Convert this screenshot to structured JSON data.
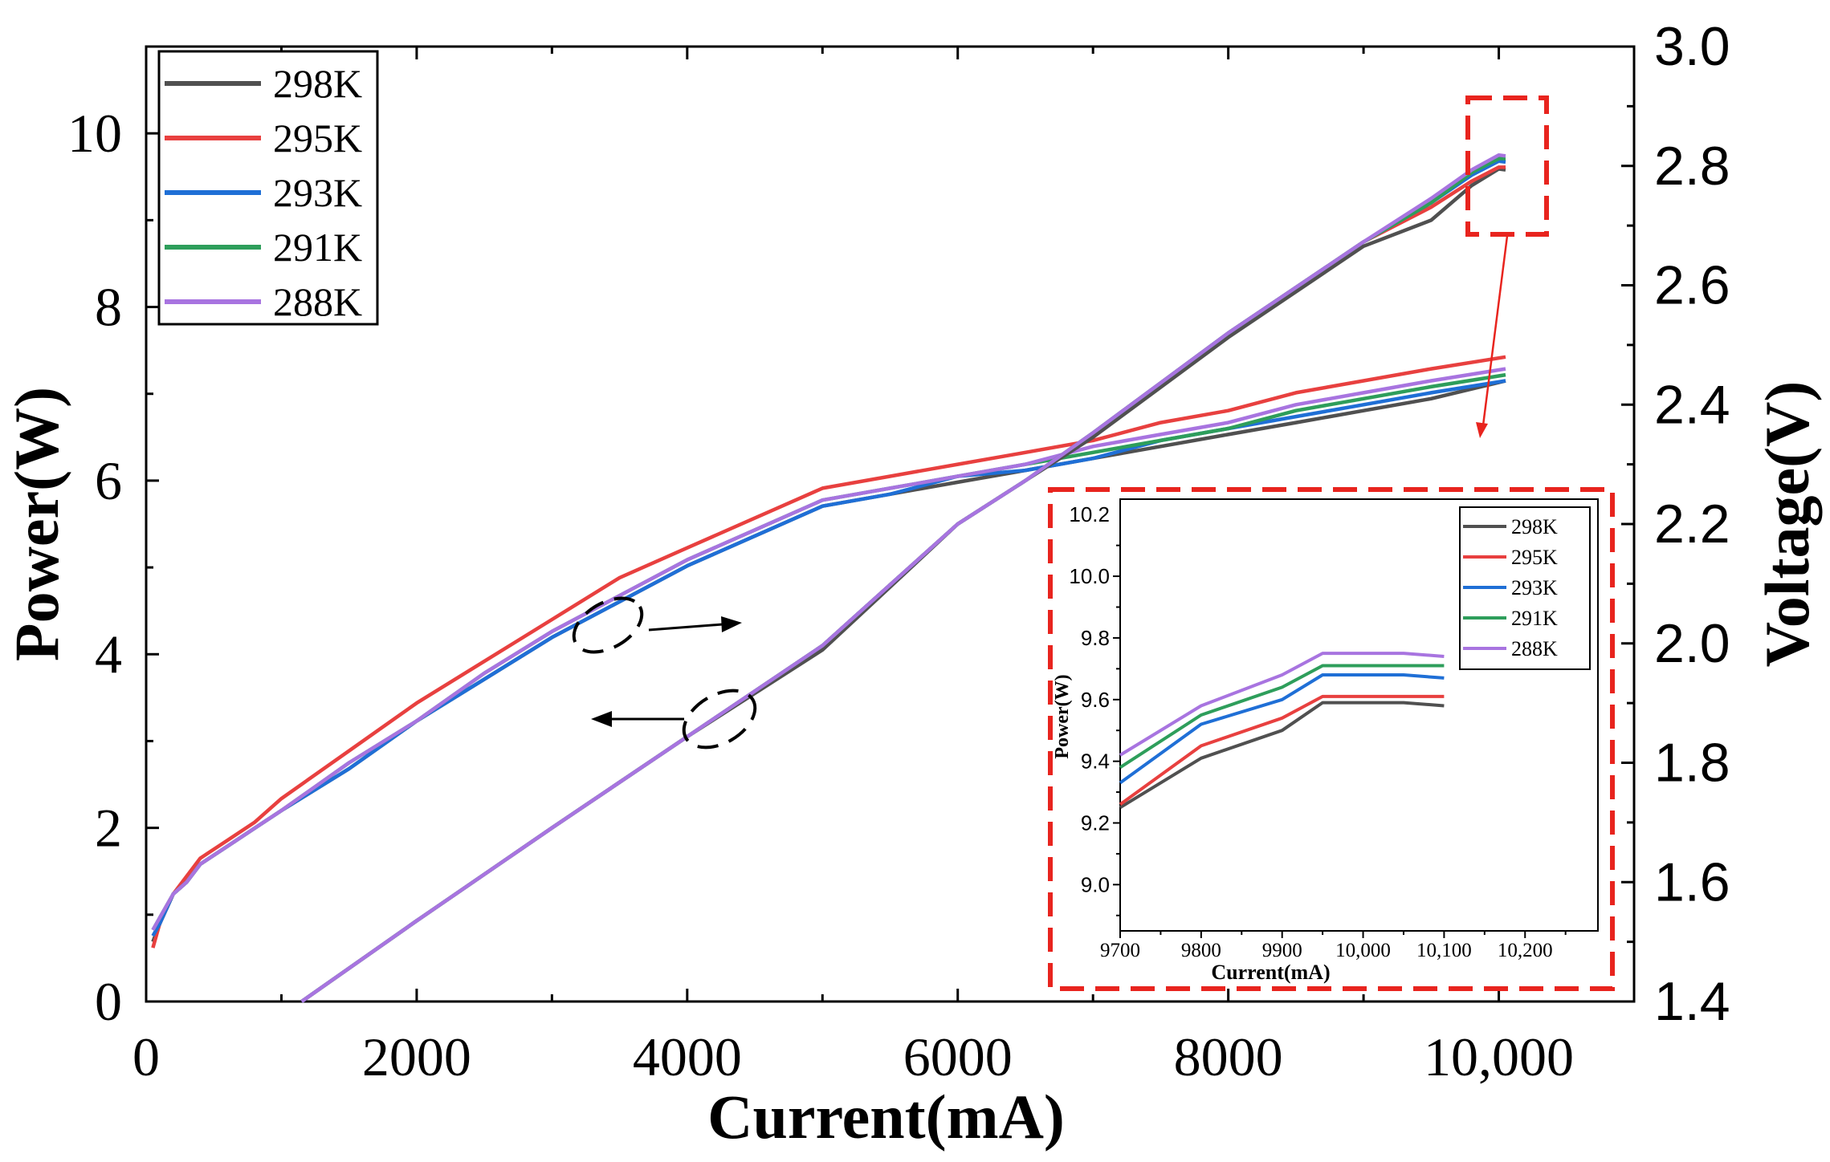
{
  "chart_data": [
    {
      "type": "line",
      "title": "",
      "xlabel": "Current(mA)",
      "ylabel": "Power(W)",
      "y2label": "Voltage(V)",
      "xlim": [
        0,
        11000
      ],
      "ylim": [
        0,
        11
      ],
      "y2lim": [
        1.4,
        3.0
      ],
      "xticks": [
        0,
        2000,
        4000,
        6000,
        8000,
        10000
      ],
      "xtick_labels": [
        "0",
        "2000",
        "4000",
        "6000",
        "8000",
        "10,000"
      ],
      "yticks": [
        0,
        2,
        4,
        6,
        8,
        10
      ],
      "ytick_labels": [
        "0",
        "2",
        "4",
        "6",
        "8",
        "10"
      ],
      "y2ticks": [
        1.4,
        1.6,
        1.8,
        2.0,
        2.2,
        2.4,
        2.6,
        2.8,
        3.0
      ],
      "y2tick_labels": [
        "1.4",
        "1.6",
        "1.8",
        "2.0",
        "2.2",
        "2.4",
        "2.6",
        "2.8",
        "3.0"
      ],
      "legend_position": "top-left",
      "grid": false,
      "power_series": [
        {
          "name": "298K",
          "color": "#505050",
          "x": [
            1150,
            2000,
            3000,
            4000,
            5000,
            6000,
            6500,
            7000,
            8000,
            9000,
            9500,
            9800,
            10000,
            10050
          ],
          "y": [
            0,
            0.93,
            2.0,
            3.05,
            4.05,
            5.5,
            6.0,
            6.5,
            7.65,
            8.7,
            9.0,
            9.4,
            9.59,
            9.58
          ]
        },
        {
          "name": "295K",
          "color": "#e8403f",
          "x": [
            1150,
            2000,
            3000,
            4000,
            5000,
            6000,
            6500,
            7000,
            8000,
            9000,
            9500,
            9800,
            10000,
            10050
          ],
          "y": [
            0,
            0.93,
            2.0,
            3.05,
            4.1,
            5.5,
            6.0,
            6.55,
            7.7,
            8.75,
            9.15,
            9.45,
            9.61,
            9.61
          ]
        },
        {
          "name": "293K",
          "color": "#1f6fd6",
          "x": [
            1150,
            2000,
            3000,
            4000,
            5000,
            6000,
            6500,
            7000,
            8000,
            9000,
            9500,
            9800,
            10000,
            10050
          ],
          "y": [
            0,
            0.93,
            2.0,
            3.05,
            4.1,
            5.5,
            6.0,
            6.55,
            7.7,
            8.75,
            9.2,
            9.52,
            9.68,
            9.67
          ]
        },
        {
          "name": "291K",
          "color": "#2e9e5b",
          "x": [
            1150,
            2000,
            3000,
            4000,
            5000,
            6000,
            6500,
            7000,
            8000,
            9000,
            9500,
            9800,
            10000,
            10050
          ],
          "y": [
            0,
            0.93,
            2.0,
            3.05,
            4.1,
            5.5,
            6.0,
            6.55,
            7.7,
            8.75,
            9.2,
            9.55,
            9.71,
            9.71
          ]
        },
        {
          "name": "288K",
          "color": "#a874e0",
          "x": [
            1150,
            2000,
            3000,
            4000,
            5000,
            6000,
            6500,
            7000,
            8000,
            9000,
            9500,
            9800,
            10000,
            10050
          ],
          "y": [
            0,
            0.93,
            2.0,
            3.05,
            4.1,
            5.5,
            6.0,
            6.55,
            7.7,
            8.75,
            9.25,
            9.58,
            9.75,
            9.74
          ]
        }
      ],
      "voltage_series": [
        {
          "name": "298K",
          "color": "#505050",
          "x": [
            50,
            100,
            200,
            300,
            400,
            600,
            800,
            1000,
            1500,
            2000,
            2500,
            3000,
            3500,
            4000,
            4500,
            5000,
            5500,
            6000,
            6500,
            7000,
            7500,
            8000,
            8500,
            9000,
            9500,
            10050
          ],
          "y": [
            1.5,
            1.53,
            1.58,
            1.6,
            1.63,
            1.66,
            1.69,
            1.72,
            1.79,
            1.87,
            1.94,
            2.01,
            2.07,
            2.13,
            2.18,
            2.23,
            2.25,
            2.27,
            2.29,
            2.31,
            2.33,
            2.35,
            2.37,
            2.39,
            2.41,
            2.44
          ]
        },
        {
          "name": "295K",
          "color": "#e8403f",
          "x": [
            50,
            100,
            200,
            300,
            400,
            600,
            800,
            1000,
            1500,
            2000,
            2500,
            3000,
            3500,
            4000,
            4500,
            5000,
            5500,
            6000,
            6500,
            7000,
            7500,
            8000,
            8500,
            9000,
            9500,
            10050
          ],
          "y": [
            1.49,
            1.53,
            1.58,
            1.61,
            1.64,
            1.67,
            1.7,
            1.74,
            1.82,
            1.9,
            1.97,
            2.04,
            2.11,
            2.16,
            2.21,
            2.26,
            2.28,
            2.3,
            2.32,
            2.34,
            2.37,
            2.39,
            2.42,
            2.44,
            2.46,
            2.48
          ]
        },
        {
          "name": "293K",
          "color": "#1f6fd6",
          "x": [
            50,
            100,
            200,
            300,
            400,
            600,
            800,
            1000,
            1500,
            2000,
            2500,
            3000,
            3500,
            4000,
            4500,
            5000,
            5500,
            6000,
            6500,
            7000,
            7500,
            8000,
            8500,
            9000,
            9500,
            10050
          ],
          "y": [
            1.51,
            1.53,
            1.58,
            1.6,
            1.63,
            1.66,
            1.69,
            1.72,
            1.79,
            1.87,
            1.94,
            2.01,
            2.07,
            2.13,
            2.18,
            2.23,
            2.25,
            2.28,
            2.29,
            2.31,
            2.34,
            2.36,
            2.38,
            2.4,
            2.42,
            2.44
          ]
        },
        {
          "name": "291K",
          "color": "#2e9e5b",
          "x": [
            50,
            100,
            200,
            300,
            400,
            600,
            800,
            1000,
            1500,
            2000,
            2500,
            3000,
            3500,
            4000,
            4500,
            5000,
            5500,
            6000,
            6500,
            7000,
            7500,
            8000,
            8500,
            9000,
            9500,
            10050
          ],
          "y": [
            1.52,
            1.54,
            1.58,
            1.6,
            1.63,
            1.66,
            1.69,
            1.72,
            1.8,
            1.87,
            1.95,
            2.02,
            2.08,
            2.14,
            2.19,
            2.24,
            2.26,
            2.28,
            2.3,
            2.32,
            2.34,
            2.36,
            2.39,
            2.41,
            2.43,
            2.45
          ]
        },
        {
          "name": "288K",
          "color": "#a874e0",
          "x": [
            50,
            100,
            200,
            300,
            400,
            600,
            800,
            1000,
            1500,
            2000,
            2500,
            3000,
            3500,
            4000,
            4500,
            5000,
            5500,
            6000,
            6500,
            7000,
            7500,
            8000,
            8500,
            9000,
            9500,
            10050
          ],
          "y": [
            1.52,
            1.54,
            1.58,
            1.6,
            1.63,
            1.66,
            1.69,
            1.72,
            1.8,
            1.87,
            1.95,
            2.02,
            2.08,
            2.14,
            2.19,
            2.24,
            2.26,
            2.28,
            2.3,
            2.33,
            2.35,
            2.37,
            2.4,
            2.42,
            2.44,
            2.46
          ]
        }
      ]
    },
    {
      "type": "line",
      "title": "",
      "xlabel": "Current(mA)",
      "ylabel": "Power(W)",
      "xlim": [
        9700,
        10290
      ],
      "ylim": [
        8.85,
        10.25
      ],
      "xticks": [
        9700,
        9800,
        9900,
        10000,
        10100,
        10200
      ],
      "xtick_labels": [
        "9700",
        "9800",
        "9900",
        "10,000",
        "10,100",
        "10,200"
      ],
      "yticks": [
        9.0,
        9.2,
        9.4,
        9.6,
        9.8,
        10.0,
        10.2
      ],
      "ytick_labels": [
        "9.0",
        "9.2",
        "9.4",
        "9.6",
        "9.8",
        "10.0",
        "10.2"
      ],
      "legend_position": "top-right",
      "series": [
        {
          "name": "298K",
          "color": "#505050",
          "x": [
            9700,
            9800,
            9900,
            9950,
            10050,
            10100
          ],
          "y": [
            9.25,
            9.41,
            9.5,
            9.59,
            9.59,
            9.58
          ]
        },
        {
          "name": "295K",
          "color": "#e8403f",
          "x": [
            9700,
            9800,
            9900,
            9950,
            10050,
            10100
          ],
          "y": [
            9.26,
            9.45,
            9.54,
            9.61,
            9.61,
            9.61
          ]
        },
        {
          "name": "293K",
          "color": "#1f6fd6",
          "x": [
            9700,
            9800,
            9900,
            9950,
            10050,
            10100
          ],
          "y": [
            9.33,
            9.52,
            9.6,
            9.68,
            9.68,
            9.67
          ]
        },
        {
          "name": "291K",
          "color": "#2e9e5b",
          "x": [
            9700,
            9800,
            9900,
            9950,
            10050,
            10100
          ],
          "y": [
            9.38,
            9.55,
            9.64,
            9.71,
            9.71,
            9.71
          ]
        },
        {
          "name": "288K",
          "color": "#a874e0",
          "x": [
            9700,
            9800,
            9900,
            9950,
            10050,
            10100
          ],
          "y": [
            9.42,
            9.58,
            9.68,
            9.75,
            9.75,
            9.74
          ]
        }
      ]
    }
  ]
}
